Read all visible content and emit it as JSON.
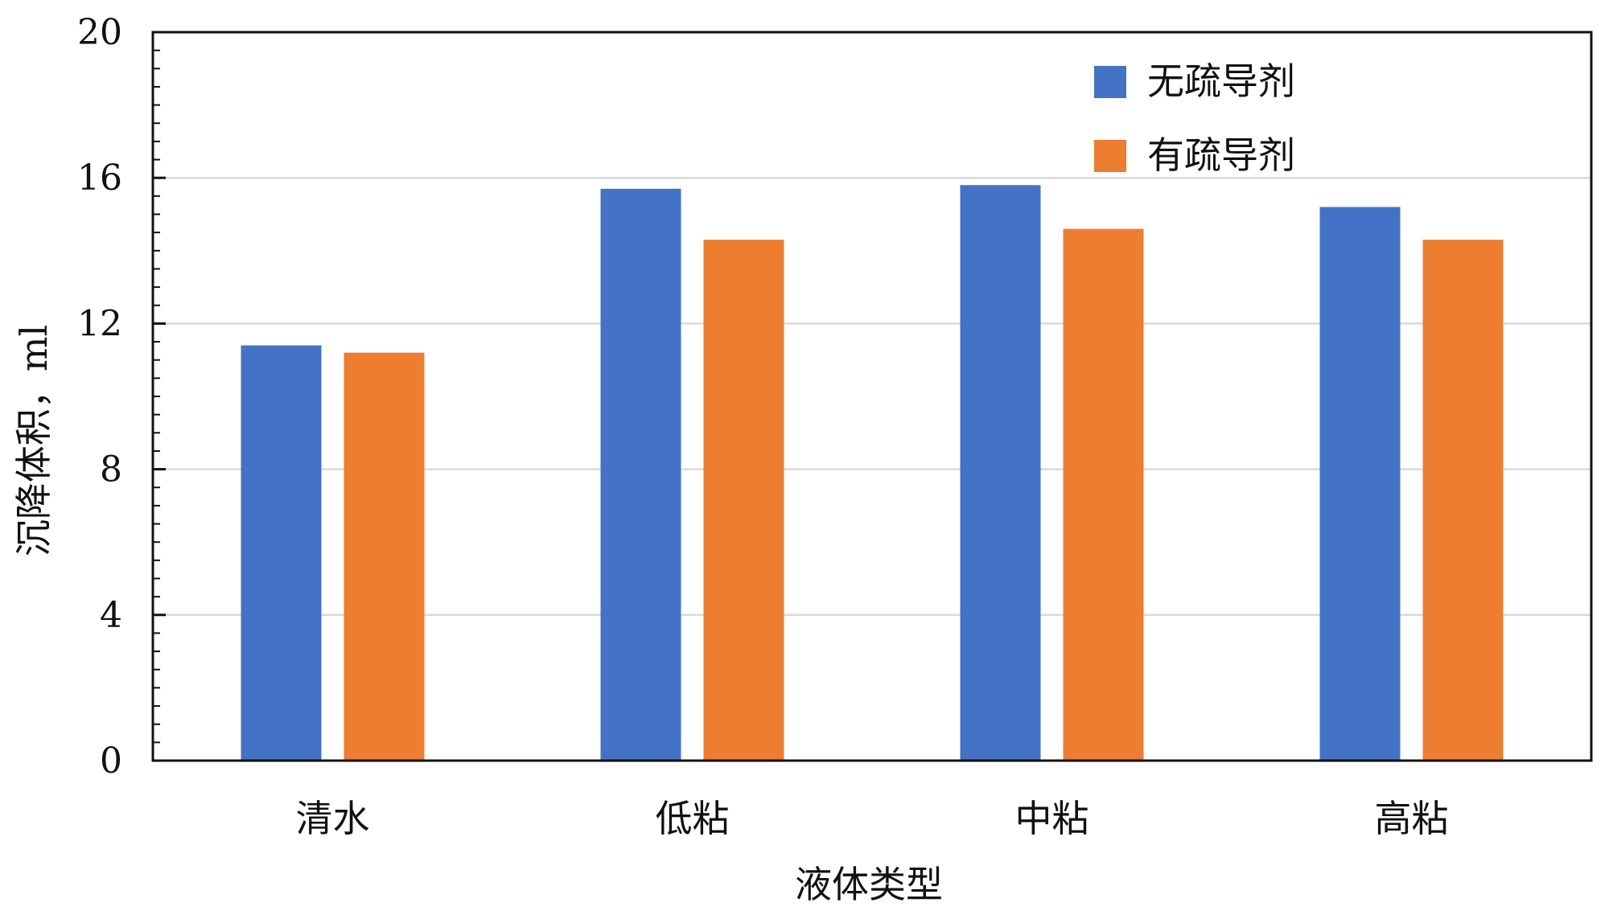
{
  "chart_data": {
    "type": "bar",
    "xlabel": "液体类型",
    "ylabel": "沉降体积，ml",
    "categories": [
      "清水",
      "低粘",
      "中粘",
      "高粘"
    ],
    "series": [
      {
        "name": "无疏导剂",
        "values": [
          11.4,
          15.7,
          15.8,
          15.2
        ],
        "color": "#4472C4"
      },
      {
        "name": "有疏导剂",
        "values": [
          11.2,
          14.3,
          14.6,
          14.3
        ],
        "color": "#ED7D31"
      }
    ],
    "ylim": [
      0,
      20
    ],
    "yticks": [
      0,
      4,
      8,
      12,
      16,
      20
    ],
    "grid": true,
    "legend": "top-right"
  }
}
